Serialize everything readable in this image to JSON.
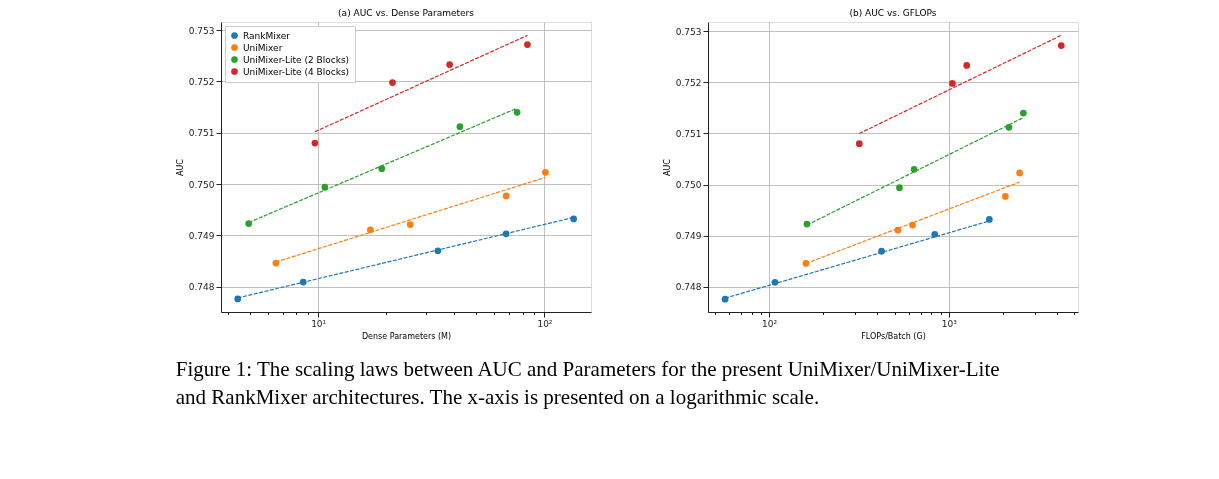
{
  "chart_data": [
    {
      "type": "scatter",
      "title": "(a) AUC vs. Dense Parameters",
      "xlabel": "Dense Parameters (M)",
      "ylabel": "AUC",
      "log": "x",
      "grid": true,
      "legend": "top left",
      "marker": "circle",
      "xlim": [
        3.72,
        160.6
      ],
      "ylim": [
        0.747506,
        0.75316
      ],
      "xticks": [
        {
          "value": 4,
          "label": null
        },
        {
          "value": 5,
          "label": null
        },
        {
          "value": 6,
          "label": null
        },
        {
          "value": 7,
          "label": null
        },
        {
          "value": 8,
          "label": null
        },
        {
          "value": 9,
          "label": null
        },
        {
          "value": 10,
          "label": "10¹"
        },
        {
          "value": 20,
          "label": null
        },
        {
          "value": 30,
          "label": null
        },
        {
          "value": 40,
          "label": null
        },
        {
          "value": 50,
          "label": null
        },
        {
          "value": 60,
          "label": null
        },
        {
          "value": 70,
          "label": null
        },
        {
          "value": 80,
          "label": null
        },
        {
          "value": 90,
          "label": null
        },
        {
          "value": 100,
          "label": "10²"
        }
      ],
      "yticks": [
        0.748,
        0.749,
        {
          "value": 0.75,
          "label": "0.750"
        },
        0.751,
        0.752,
        0.753
      ],
      "series": [
        {
          "name": "RankMixer",
          "color": "#1f77b4",
          "x": [
            4.41,
            8.59,
            33.8,
            67.7,
            134.6
          ],
          "values": [
            0.74776,
            0.74809,
            0.7487,
            0.74903,
            0.74932
          ]
        },
        {
          "name": "UniMixer",
          "color": "#ff7f0e",
          "x": [
            6.5,
            17.0,
            25.5,
            67.7,
            101
          ],
          "values": [
            0.74846,
            0.74911,
            0.74921,
            0.74977,
            0.75023
          ]
        },
        {
          "name": "UniMixer-Lite (2 Blocks)",
          "color": "#2ca02c",
          "x": [
            4.93,
            10.7,
            19.1,
            42.3,
            75.7
          ],
          "values": [
            0.74923,
            0.74994,
            0.7503,
            0.75112,
            0.7514
          ]
        },
        {
          "name": "UniMixer-Lite (4 Blocks)",
          "color": "#d62728",
          "x": [
            9.67,
            21.3,
            38.1,
            84.1
          ],
          "values": [
            0.7508,
            0.75198,
            0.75233,
            0.75272
          ]
        },
        {
          "type": "line",
          "marker": "none",
          "line_style": "dashed",
          "color": "#1f77b4",
          "x": [
            4.41,
            134.6
          ],
          "values": [
            0.74778,
            0.74935
          ]
        },
        {
          "type": "line",
          "marker": "none",
          "line_style": "dashed",
          "color": "#ff7f0e",
          "x": [
            6.5,
            101
          ],
          "values": [
            0.74848,
            0.75013
          ]
        },
        {
          "type": "line",
          "marker": "none",
          "line_style": "dashed",
          "color": "#2ca02c",
          "x": [
            4.93,
            75.7
          ],
          "values": [
            0.74925,
            0.75148
          ]
        },
        {
          "type": "line",
          "marker": "none",
          "line_style": "dashed",
          "color": "#d62728",
          "x": [
            9.67,
            84.1
          ],
          "values": [
            0.75102,
            0.7529
          ]
        }
      ],
      "annotations": [
        "Figure 1: The scaling laws between AUC and Parameters for the present UniMixer/UniMixer-Lite and RankMixer architectures. The x-axis is presented on a logarithmic scale."
      ]
    },
    {
      "type": "scatter",
      "title": "(b) AUC vs. GFLOPs",
      "xlabel": "FLOPs/Batch (G)",
      "ylabel": "AUC",
      "log": "x",
      "grid": true,
      "legend": "top left",
      "marker": "circle",
      "xlim": [
        45.8,
        5237
      ],
      "ylim": [
        0.74751,
        0.75318
      ],
      "xticks": [
        {
          "value": 50,
          "label": null
        },
        {
          "value": 60,
          "label": null
        },
        {
          "value": 70,
          "label": null
        },
        {
          "value": 80,
          "label": null
        },
        {
          "value": 90,
          "label": null
        },
        {
          "value": 100,
          "label": "10²"
        },
        {
          "value": 200,
          "label": null
        },
        {
          "value": 300,
          "label": null
        },
        {
          "value": 400,
          "label": null
        },
        {
          "value": 500,
          "label": null
        },
        {
          "value": 600,
          "label": null
        },
        {
          "value": 700,
          "label": null
        },
        {
          "value": 800,
          "label": null
        },
        {
          "value": 900,
          "label": null
        },
        {
          "value": 1000,
          "label": "10³"
        },
        {
          "value": 2000,
          "label": null
        },
        {
          "value": 3000,
          "label": null
        },
        {
          "value": 4000,
          "label": null
        },
        {
          "value": 5000,
          "label": null
        }
      ],
      "yticks": [
        0.748,
        0.749,
        {
          "value": 0.75,
          "label": "0.750"
        },
        0.751,
        0.752,
        0.753
      ],
      "series": [
        {
          "name": "RankMixer",
          "color": "#1f77b4",
          "x": [
            57.0,
            108,
            423,
            836,
            1683
          ],
          "values": [
            0.74776,
            0.74809,
            0.7487,
            0.74903,
            0.74932
          ]
        },
        {
          "name": "UniMixer",
          "color": "#ff7f0e",
          "x": [
            160.6,
            521,
            629,
            2065,
            2477
          ],
          "values": [
            0.74846,
            0.74911,
            0.74921,
            0.74977,
            0.75023
          ]
        },
        {
          "name": "UniMixer-Lite (2 Blocks)",
          "color": "#2ca02c",
          "x": [
            162.6,
            532,
            642,
            2163,
            2600
          ],
          "values": [
            0.74923,
            0.74994,
            0.7503,
            0.75112,
            0.7514
          ]
        },
        {
          "name": "UniMixer-Lite (4 Blocks)",
          "color": "#d62728",
          "x": [
            318,
            1048,
            1259,
            4227
          ],
          "values": [
            0.7508,
            0.75198,
            0.75233,
            0.75272
          ]
        },
        {
          "type": "line",
          "marker": "none",
          "line_style": "dashed",
          "color": "#1f77b4",
          "x": [
            57.0,
            1683
          ],
          "values": [
            0.74778,
            0.74929
          ]
        },
        {
          "type": "line",
          "marker": "none",
          "line_style": "dashed",
          "color": "#ff7f0e",
          "x": [
            160.6,
            2477
          ],
          "values": [
            0.74846,
            0.75005
          ]
        },
        {
          "type": "line",
          "marker": "none",
          "line_style": "dashed",
          "color": "#2ca02c",
          "x": [
            162.6,
            2600
          ],
          "values": [
            0.74921,
            0.75131
          ]
        },
        {
          "type": "line",
          "marker": "none",
          "line_style": "dashed",
          "color": "#d62728",
          "x": [
            318,
            4227
          ],
          "values": [
            0.751,
            0.75292
          ]
        }
      ]
    }
  ]
}
